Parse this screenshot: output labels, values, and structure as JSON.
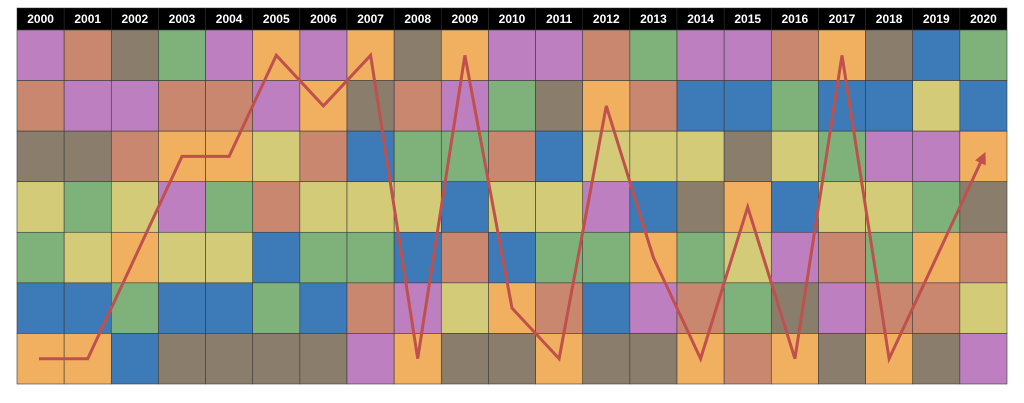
{
  "chart_data": {
    "type": "rank-grid",
    "categories": [
      "2000",
      "2001",
      "2002",
      "2003",
      "2004",
      "2005",
      "2006",
      "2007",
      "2008",
      "2009",
      "2010",
      "2011",
      "2012",
      "2013",
      "2014",
      "2015",
      "2016",
      "2017",
      "2018",
      "2019",
      "2020"
    ],
    "cells": [
      [
        "#bd7fc0",
        "#c8876e",
        "#8b7d6b",
        "#d3cb78",
        "#7fb27b",
        "#3d7ab8",
        "#f0b060"
      ],
      [
        "#c8876e",
        "#bd7fc0",
        "#8b7d6b",
        "#7fb27b",
        "#d3cb78",
        "#3d7ab8",
        "#f0b060"
      ],
      [
        "#8b7d6b",
        "#bd7fc0",
        "#c8876e",
        "#d3cb78",
        "#f0b060",
        "#7fb27b",
        "#3d7ab8"
      ],
      [
        "#7fb27b",
        "#c8876e",
        "#f0b060",
        "#bd7fc0",
        "#d3cb78",
        "#3d7ab8",
        "#8b7d6b"
      ],
      [
        "#bd7fc0",
        "#c8876e",
        "#f0b060",
        "#7fb27b",
        "#d3cb78",
        "#3d7ab8",
        "#8b7d6b"
      ],
      [
        "#f0b060",
        "#bd7fc0",
        "#d3cb78",
        "#c8876e",
        "#3d7ab8",
        "#7fb27b",
        "#8b7d6b"
      ],
      [
        "#bd7fc0",
        "#f0b060",
        "#c8876e",
        "#d3cb78",
        "#7fb27b",
        "#3d7ab8",
        "#8b7d6b"
      ],
      [
        "#f0b060",
        "#8b7d6b",
        "#3d7ab8",
        "#d3cb78",
        "#7fb27b",
        "#c8876e",
        "#bd7fc0"
      ],
      [
        "#8b7d6b",
        "#c8876e",
        "#7fb27b",
        "#d3cb78",
        "#3d7ab8",
        "#bd7fc0",
        "#f0b060"
      ],
      [
        "#f0b060",
        "#bd7fc0",
        "#7fb27b",
        "#3d7ab8",
        "#c8876e",
        "#d3cb78",
        "#8b7d6b"
      ],
      [
        "#bd7fc0",
        "#7fb27b",
        "#c8876e",
        "#d3cb78",
        "#3d7ab8",
        "#f0b060",
        "#8b7d6b"
      ],
      [
        "#bd7fc0",
        "#8b7d6b",
        "#3d7ab8",
        "#d3cb78",
        "#7fb27b",
        "#c8876e",
        "#f0b060"
      ],
      [
        "#c8876e",
        "#f0b060",
        "#d3cb78",
        "#bd7fc0",
        "#7fb27b",
        "#3d7ab8",
        "#8b7d6b"
      ],
      [
        "#7fb27b",
        "#c8876e",
        "#d3cb78",
        "#3d7ab8",
        "#f0b060",
        "#bd7fc0",
        "#8b7d6b"
      ],
      [
        "#bd7fc0",
        "#3d7ab8",
        "#d3cb78",
        "#8b7d6b",
        "#7fb27b",
        "#c8876e",
        "#f0b060"
      ],
      [
        "#bd7fc0",
        "#3d7ab8",
        "#8b7d6b",
        "#f0b060",
        "#d3cb78",
        "#7fb27b",
        "#c8876e"
      ],
      [
        "#c8876e",
        "#7fb27b",
        "#d3cb78",
        "#3d7ab8",
        "#bd7fc0",
        "#8b7d6b",
        "#f0b060"
      ],
      [
        "#f0b060",
        "#3d7ab8",
        "#7fb27b",
        "#d3cb78",
        "#c8876e",
        "#bd7fc0",
        "#8b7d6b"
      ],
      [
        "#8b7d6b",
        "#3d7ab8",
        "#bd7fc0",
        "#d3cb78",
        "#7fb27b",
        "#c8876e",
        "#f0b060"
      ],
      [
        "#3d7ab8",
        "#d3cb78",
        "#bd7fc0",
        "#7fb27b",
        "#f0b060",
        "#c8876e",
        "#8b7d6b"
      ],
      [
        "#7fb27b",
        "#3d7ab8",
        "#f0b060",
        "#8b7d6b",
        "#c8876e",
        "#d3cb78",
        "#bd7fc0"
      ]
    ],
    "series": [
      {
        "color": "#c0504d",
        "values": [
          7,
          7,
          5,
          3,
          3,
          1,
          2,
          1,
          7,
          1,
          6,
          7,
          2,
          5,
          7,
          4,
          7,
          1,
          7,
          5,
          3
        ]
      }
    ]
  }
}
